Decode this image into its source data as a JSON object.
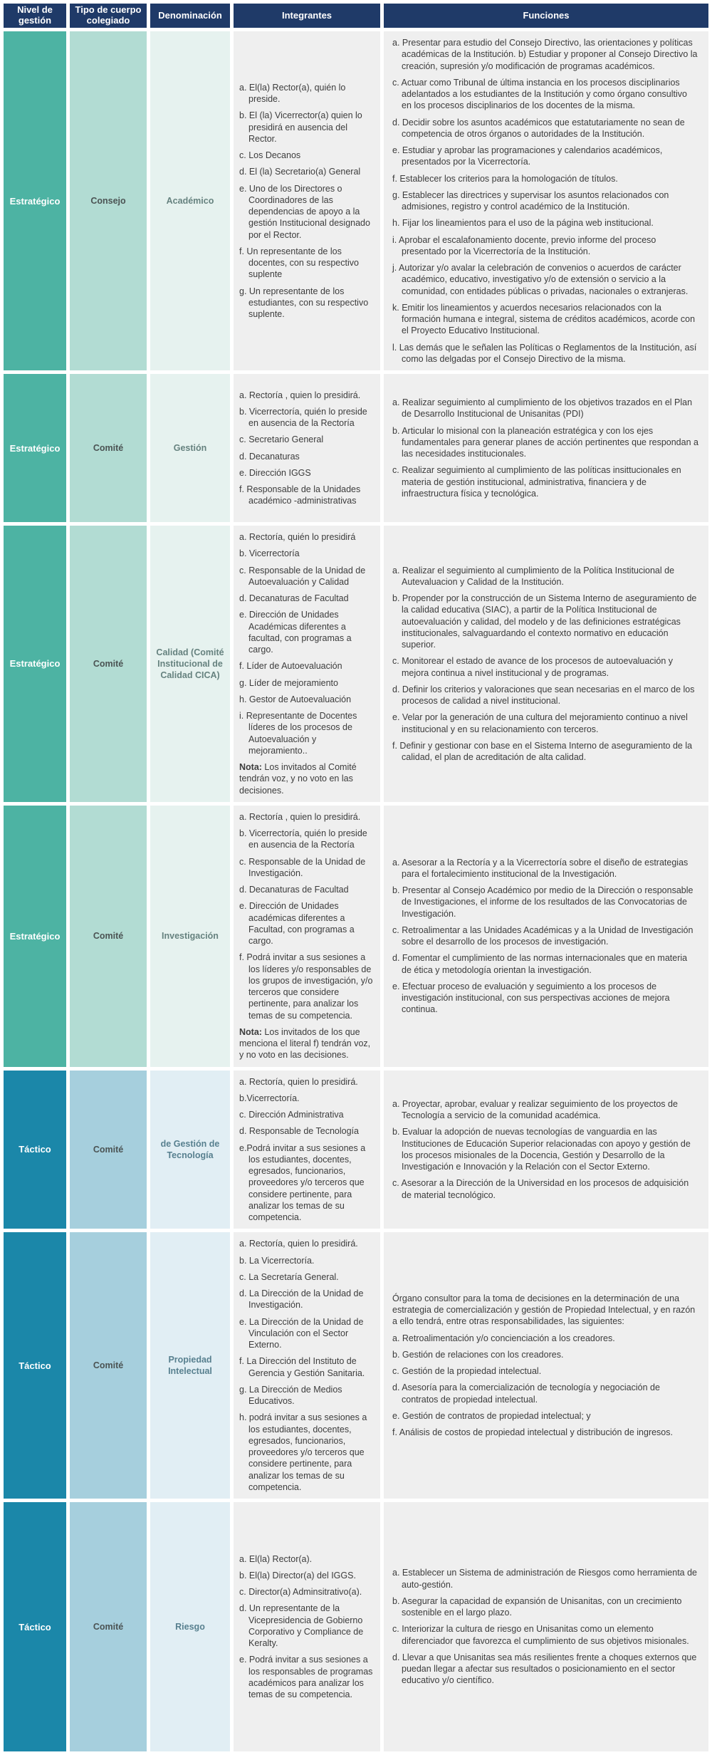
{
  "colors": {
    "header_bg": "#1f3a68",
    "header_text": "#ffffff",
    "estrat_dark": "#4db3a3",
    "estrat_mid": "#b2dcd3",
    "estrat_light": "#e6f2ef",
    "tact_dark": "#1b87a9",
    "tact_mid": "#a6cfdd",
    "tact_light": "#e1eef4",
    "body_cell_bg": "#efefef",
    "body_text": "#3c3c3c"
  },
  "table": {
    "headers": [
      "Nivel de gestión",
      "Tipo de cuerpo colegiado",
      "Denominación",
      "Integrantes",
      "Funciones"
    ],
    "rows": [
      {
        "nivel": "Estratégico",
        "tipo": "Consejo",
        "denominacion": "Académico",
        "integrantes": {
          "items": [
            "a. El(la) Rector(a), quién lo preside.",
            "b. El (la) Vicerrector(a) quien lo presidirá en ausencia del Rector.",
            "c. Los Decanos",
            "d. El (la) Secretario(a) General",
            "e. Uno de los Directores o Coordinadores de las dependencias de apoyo a la gestión Institucional designado por el Rector.",
            "f. Un representante de los docentes, con su respectivo suplente",
            "g. Un representante de los estudiantes, con su respectivo suplente."
          ]
        },
        "funciones": {
          "items": [
            "a. Presentar para estudio del Consejo Directivo, las orientaciones y políticas académicas de la Institución. b) Estudiar y proponer al Consejo Directivo la creación, supresión y/o modificación de programas académicos.",
            "c. Actuar como Tribunal de última instancia en los procesos disciplinarios adelantados a los estudiantes de la Institución y como órgano consultivo en los procesos disciplinarios de los docentes de la misma.",
            "d. Decidir sobre los asuntos académicos que estatutariamente no sean de competencia de otros órganos o autoridades de la Institución.",
            "e. Estudiar y aprobar las programaciones y calendarios académicos, presentados por la Vicerrectoría.",
            "f. Establecer los criterios para la homologación de títulos.",
            "g. Establecer las directrices y supervisar los asuntos relacionados con admisiones, registro y control académico de la Institución.",
            "h. Fijar los lineamientos para el uso de la página web institucional.",
            "i. Aprobar el escalafonamiento docente, previo informe del proceso presentado por la Vicerrectoría de la Institución.",
            "j. Autorizar y/o avalar la celebración de convenios o acuerdos de carácter académico, educativo, investigativo y/o de extensión o servicio a la comunidad, con entidades públicas o privadas, nacionales o extranjeras.",
            "k. Emitir los lineamientos y acuerdos necesarios relacionados con la formación humana e integral, sistema de créditos académicos, acorde con el Proyecto Educativo Institucional.",
            "l. Las demás que le señalen las Políticas o Reglamentos de la Institución, así como las delgadas por el Consejo Directivo de la misma."
          ]
        }
      },
      {
        "nivel": "Estratégico",
        "tipo": "Comité",
        "denominacion": "Gestión",
        "integrantes": {
          "items": [
            "a. Rectoría , quien lo presidirá.",
            "b. Vicerrectoría, quién lo preside en ausencia de la Rectoría",
            "c. Secretario General",
            "d. Decanaturas",
            "e. Dirección IGGS",
            "f. Responsable de la Unidades académico -administrativas"
          ]
        },
        "funciones": {
          "items": [
            "a. Realizar seguimiento al cumplimiento de  los objetivos trazados en el Plan de Desarrollo Institucional de Unisanitas (PDI)",
            "b. Articular lo misional con la planeación estratégica y con los ejes fundamentales para generar planes de acción pertinentes que respondan a las necesidades institucionales.",
            "c. Realizar seguimiento al cumplimiento de las políticas insittucionales en materia de gestión institucional, administrativa, financiera y de infraestructura física y tecnológica."
          ]
        }
      },
      {
        "nivel": "Estratégico",
        "tipo": "Comité",
        "denominacion": "Calidad (Comité Institucional de Calidad CICA)",
        "integrantes": {
          "items": [
            "a. Rectoría, quién lo presidirá",
            "b. Vicerrectoría",
            "c. Responsable de la Unidad  de Autoevaluación y Calidad",
            "d. Decanaturas de Facultad",
            "e. Dirección de Unidades Académicas diferentes a facultad, con programas a cargo.",
            "f. Líder de Autoevaluación",
            "g. Líder de mejoramiento",
            "h. Gestor de Autoevaluación",
            "i.  Representante de Docentes líderes de los procesos de Autoevaluación y mejoramiento.."
          ],
          "note_label": "Nota:",
          "note_text": "Los invitados al Comité tendrán voz, y no voto en las decisiones."
        },
        "funciones": {
          "items": [
            "a. Realizar el seguimiento al cumplimiento de la Política Institucional de Autevaluacion y Calidad de la Institución.",
            "b. Propender por la construcción de un Sistema Interno de aseguramiento de la calidad educativa (SIAC), a partir de la Política Institucional de autoevaluación  y calidad, del modelo y de las definiciones estratégicas institucionales, salvaguardando el contexto normativo en educación superior.",
            "c. Monitorear el estado de avance de los procesos de autoevaluación y mejora continua a nivel institucional y de programas.",
            "d. Definir los criterios y valoraciones que sean necesarias en el marco de los procesos de calidad a nivel institucional.",
            "e. Velar por la generación de una cultura del mejoramiento continuo a nivel institucional y en su relacionamiento con terceros.",
            "f. Definir y gestionar con base en el Sistema  Interno de aseguramiento de la calidad, el plan de acreditación de alta calidad."
          ]
        }
      },
      {
        "nivel": "Estratégico",
        "tipo": "Comité",
        "denominacion": "Investigación",
        "integrantes": {
          "items": [
            "a. Rectoría , quien lo presidirá.",
            "b. Vicerrectoría, quién lo preside en ausencia de la Rectoría",
            "c. Responsable de la Unidad de Investigación.",
            "d. Decanaturas de Facultad",
            "e. Dirección de Unidades académicas diferentes a Facultad, con programas a cargo.",
            "f. Podrá invitar a sus sesiones a los líderes y/o responsables de los grupos de investigación, y/o terceros que considere pertinente, para analizar los temas de su competencia."
          ],
          "note_label": "Nota:",
          "note_text": "Los invitados de los que menciona el literal f) tendrán voz, y no voto en las decisiones."
        },
        "funciones": {
          "items": [
            "a. Asesorar a la Rectoría y a la Vicerrectoría sobre el diseño de estrategias para el fortalecimiento institucional de la Investigación.",
            "b. Presentar al Consejo Académico por medio de la Dirección o responsable de Investigaciones, el informe de los resultados de las Convocatorias de Investigación.",
            "c. Retroalimentar a las Unidades Académicas y  a la Unidad de Investigación sobre el desarrollo de los procesos de investigación.",
            "d. Fomentar el cumplimiento de las normas internacionales que en materia de ética y metodología orientan la investigación.",
            "e. Efectuar proceso de evaluación y seguimiento a los procesos de investigación institucional, con sus perspectivas acciones de mejora continua."
          ]
        }
      },
      {
        "nivel": "Táctico",
        "tipo": "Comité",
        "denominacion": "de Gestión de Tecnología",
        "integrantes": {
          "items": [
            "a. Rectoría, quien lo presidirá.",
            "b.Vicerrectoría.",
            "c. Dirección Administrativa",
            "d. Responsable de Tecnología",
            "e.Podrá invitar a sus sesiones a los estudiantes, docentes, egresados, funcionarios, proveedores y/o terceros que considere pertinente, para analizar los temas de su competencia."
          ]
        },
        "funciones": {
          "items": [
            "a. Proyectar, aprobar, evaluar y realizar seguimiento de los proyectos de Tecnología a servicio de la comunidad académica.",
            "b. Evaluar la adopción de nuevas tecnologías de vanguardia en las Instituciones de Educación Superior relacionadas con apoyo y gestión de los procesos misionales de la Docencia, Gestión y Desarrollo de la Investigación e Innovación y la Relación con el Sector Externo.",
            "c. Asesorar a la Dirección de la Universidad en los procesos de adquisición de material tecnológico."
          ]
        }
      },
      {
        "nivel": "Táctico",
        "tipo": "Comité",
        "denominacion": "Propiedad Intelectual",
        "integrantes": {
          "items": [
            "a. Rectoría, quien lo presidirá.",
            "b. La Vicerrectoría.",
            "c. La Secretaría General.",
            "d. La Dirección de la Unidad de Investigación.",
            "e. La Dirección de la Unidad de Vinculación con el Sector Externo.",
            "f. La Dirección del Instituto de Gerencia y Gestión Sanitaria.",
            "g. La Dirección de Medios Educativos.",
            "h. podrá invitar a sus sesiones a los estudiantes, docentes, egresados, funcionarios, proveedores y/o terceros que considere pertinente, para analizar los temas de su competencia."
          ]
        },
        "funciones": {
          "intro": "Órgano consultor para la toma de decisiones en la determinación de una estrategia de comercialización y gestión de Propiedad Intelectual, y en razón a ello tendrá, entre otras responsabilidades, las siguientes:",
          "items": [
            "a. Retroalimentación y/o concienciación a los creadores.",
            "b. Gestión de relaciones con los creadores.",
            "c. Gestión de la propiedad intelectual.",
            "d. Asesoría para la comercialización de tecnología y negociación de contratos de propiedad intelectual.",
            "e. Gestión de contratos de propiedad intelectual; y",
            "f. Análisis de costos de propiedad intelectual y distribución de ingresos."
          ]
        }
      },
      {
        "nivel": "Táctico",
        "tipo": "Comité",
        "denominacion": "Riesgo",
        "integrantes": {
          "items": [
            "a. El(la) Rector(a).",
            "b. El(la) Director(a) del IGGS.",
            "c. Director(a) Adminsitrativo(a).",
            "d. Un representante de la Vicepresidencia de Gobierno Corporativo y Compliance de Keralty.",
            "e. Podrá invitar a sus sesiones a los responsables de programas académicos para analizar los temas de su competencia."
          ]
        },
        "funciones": {
          "items": [
            "a. Establecer un Sistema de administración de Riesgos como herramienta de auto-gestión.",
            "b. Asegurar la capacidad de expansión de Unisanitas, con un crecimiento sostenible en el largo plazo.",
            "c. Interiorizar la cultura de riesgo en Unisanitas como un elemento diferenciador que favorezca el cumplimiento de sus objetivos misionales.",
            "d. Llevar a que Unisanitas sea más resilientes frente a choques externos que puedan llegar a afectar sus resultados o posicionamiento en el sector educativo y/o científico."
          ]
        }
      }
    ]
  }
}
